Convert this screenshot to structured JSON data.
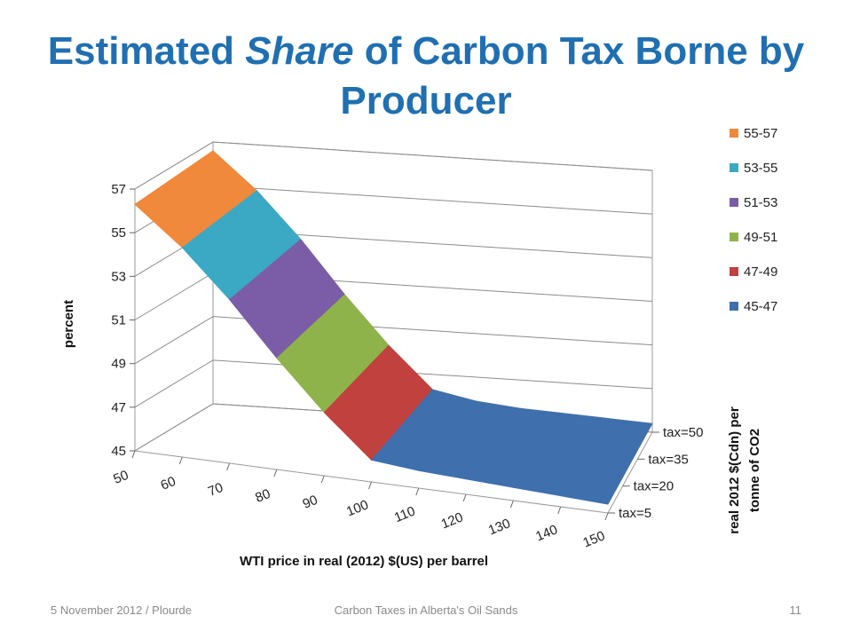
{
  "slide": {
    "title_pre": "Estimated ",
    "title_em": "Share",
    "title_post": " of Carbon Tax Borne by Producer",
    "footer_left": "5 November 2012 / Plourde",
    "footer_center": "Carbon Taxes in Alberta's Oil Sands",
    "footer_page": "11"
  },
  "chart_data": {
    "type": "3d-surface",
    "title": "",
    "xlabel": "WTI price in real (2012) $(US) per barrel",
    "ylabel": "percent",
    "zlabel_line1": "real 2012 $(Cdn) per",
    "zlabel_line2": "tonne of CO2",
    "x_ticks": [
      "50",
      "60",
      "70",
      "80",
      "90",
      "100",
      "110",
      "120",
      "130",
      "140",
      "150"
    ],
    "y_ticks": [
      "45",
      "47",
      "49",
      "51",
      "53",
      "55",
      "57"
    ],
    "z_ticks": [
      "tax=5",
      "tax=20",
      "tax=35",
      "tax=50"
    ],
    "ylim": [
      45,
      57
    ],
    "x": [
      50,
      60,
      70,
      80,
      90,
      100,
      110,
      120,
      130,
      140,
      150
    ],
    "series": [
      {
        "name": "tax=5",
        "values": [
          56.3,
          54.6,
          52.5,
          50.1,
          47.9,
          46.0,
          45.8,
          45.7,
          45.6,
          45.5,
          45.4
        ]
      },
      {
        "name": "tax=20",
        "values": [
          56.4,
          54.7,
          52.6,
          50.2,
          48.0,
          46.1,
          45.8,
          45.7,
          45.6,
          45.5,
          45.4
        ]
      },
      {
        "name": "tax=35",
        "values": [
          56.5,
          54.8,
          52.7,
          50.3,
          48.1,
          46.2,
          45.8,
          45.7,
          45.6,
          45.5,
          45.4
        ]
      },
      {
        "name": "tax=50",
        "values": [
          56.6,
          54.9,
          52.8,
          50.4,
          48.2,
          46.3,
          45.9,
          45.7,
          45.6,
          45.5,
          45.4
        ]
      }
    ],
    "bands": [
      {
        "label": "55-57",
        "lo": 55,
        "hi": 57,
        "color": "#f0893b"
      },
      {
        "label": "53-55",
        "lo": 53,
        "hi": 55,
        "color": "#3ba8c4"
      },
      {
        "label": "51-53",
        "lo": 51,
        "hi": 53,
        "color": "#7a5da6"
      },
      {
        "label": "49-51",
        "lo": 49,
        "hi": 51,
        "color": "#8fb34b"
      },
      {
        "label": "47-49",
        "lo": 47,
        "hi": 49,
        "color": "#c0413e"
      },
      {
        "label": "45-47",
        "lo": 45,
        "hi": 47,
        "color": "#3f6fad"
      }
    ],
    "legend_position": "right",
    "grid": true
  }
}
